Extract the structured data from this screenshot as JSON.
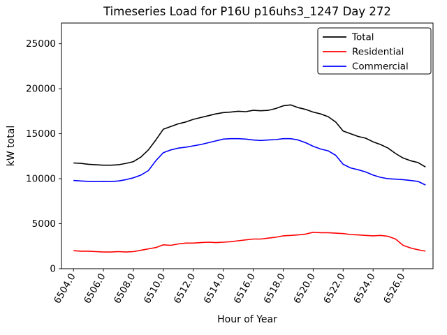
{
  "figure": {
    "title": "Timeseries Load for P16U p16uhs3_1247  Day 272",
    "xlabel": "Hour of Year",
    "ylabel": "kW total"
  },
  "chart_data": {
    "type": "line",
    "title": "Timeseries Load for P16U p16uhs3_1247  Day 272",
    "xlabel": "Hour of Year",
    "ylabel": "kW total",
    "xlim": [
      6503.2,
      6528.0
    ],
    "ylim": [
      0,
      27300
    ],
    "xticks": [
      6504,
      6506,
      6508,
      6510,
      6512,
      6514,
      6516,
      6518,
      6520,
      6522,
      6524,
      6526
    ],
    "xtick_labels": [
      "6504.0",
      "6506.0",
      "6508.0",
      "6510.0",
      "6512.0",
      "6514.0",
      "6516.0",
      "6518.0",
      "6520.0",
      "6522.0",
      "6524.0",
      "6526.0"
    ],
    "yticks": [
      0,
      5000,
      10000,
      15000,
      20000,
      25000
    ],
    "ytick_labels": [
      "0",
      "5000",
      "10000",
      "15000",
      "20000",
      "25000"
    ],
    "grid": false,
    "legend_position": "top-right",
    "legend": [
      "Total",
      "Residential",
      "Commercial"
    ],
    "x": [
      6504.0,
      6504.5,
      6505.0,
      6505.5,
      6506.0,
      6506.5,
      6507.0,
      6507.5,
      6508.0,
      6508.5,
      6509.0,
      6509.5,
      6510.0,
      6510.5,
      6511.0,
      6511.5,
      6512.0,
      6512.5,
      6513.0,
      6513.5,
      6514.0,
      6514.5,
      6515.0,
      6515.5,
      6516.0,
      6516.5,
      6517.0,
      6517.5,
      6518.0,
      6518.5,
      6519.0,
      6519.5,
      6520.0,
      6520.5,
      6521.0,
      6521.5,
      6522.0,
      6522.5,
      6523.0,
      6523.5,
      6524.0,
      6524.5,
      6525.0,
      6525.5,
      6526.0,
      6526.5,
      6527.0,
      6527.5
    ],
    "series": [
      {
        "name": "Total",
        "color": "#000000",
        "values": [
          11750,
          11700,
          11600,
          11550,
          11500,
          11500,
          11550,
          11700,
          11900,
          12400,
          13200,
          14300,
          15500,
          15800,
          16100,
          16300,
          16600,
          16800,
          17000,
          17200,
          17350,
          17400,
          17500,
          17450,
          17600,
          17550,
          17600,
          17800,
          18100,
          18200,
          17900,
          17700,
          17400,
          17200,
          16900,
          16300,
          15300,
          15000,
          14700,
          14500,
          14100,
          13800,
          13400,
          12800,
          12300,
          12000,
          11800,
          11300
        ]
      },
      {
        "name": "Residential",
        "color": "#ff0000",
        "values": [
          2000,
          1950,
          1950,
          1900,
          1850,
          1850,
          1900,
          1850,
          1900,
          2050,
          2200,
          2350,
          2650,
          2600,
          2750,
          2850,
          2850,
          2900,
          2950,
          2900,
          2950,
          3000,
          3100,
          3200,
          3300,
          3300,
          3400,
          3500,
          3650,
          3700,
          3750,
          3850,
          4050,
          4000,
          4000,
          3950,
          3900,
          3800,
          3750,
          3700,
          3650,
          3700,
          3600,
          3300,
          2600,
          2300,
          2100,
          1950
        ]
      },
      {
        "name": "Commercial",
        "color": "#0000ff",
        "values": [
          9800,
          9750,
          9700,
          9680,
          9700,
          9680,
          9750,
          9900,
          10100,
          10400,
          10900,
          12000,
          12900,
          13200,
          13400,
          13500,
          13650,
          13800,
          14000,
          14200,
          14400,
          14450,
          14450,
          14400,
          14300,
          14250,
          14300,
          14350,
          14450,
          14450,
          14300,
          14000,
          13600,
          13300,
          13100,
          12600,
          11600,
          11200,
          11000,
          10750,
          10400,
          10150,
          10000,
          9950,
          9900,
          9800,
          9700,
          9300
        ]
      }
    ]
  }
}
